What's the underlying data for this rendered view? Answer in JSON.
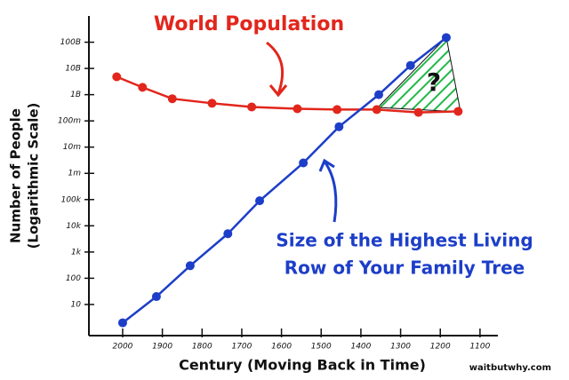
{
  "chart_data": {
    "type": "line",
    "title": "World Population",
    "annotations": [
      "Size of the Highest Living",
      "Row of Your Family Tree",
      "?"
    ],
    "source": "waitbutwhy.com",
    "xlabel": "Century (Moving Back in Time)",
    "ylabel": [
      "Number of People",
      "(Logarithmic Scale)"
    ],
    "xlim": [
      2085,
      1055
    ],
    "xticks": [
      2000,
      1900,
      1800,
      1700,
      1600,
      1500,
      1400,
      1300,
      1200,
      1100
    ],
    "ylim": [
      0.65,
      1000000000000
    ],
    "yscale": "log",
    "yticks": [
      {
        "value": 10,
        "label": "10"
      },
      {
        "value": 100,
        "label": "100"
      },
      {
        "value": 1000,
        "label": "1k"
      },
      {
        "value": 10000,
        "label": "10k"
      },
      {
        "value": 100000,
        "label": "100k"
      },
      {
        "value": 1000000,
        "label": "1m"
      },
      {
        "value": 10000000,
        "label": "10m"
      },
      {
        "value": 100000000,
        "label": "100m"
      },
      {
        "value": 1000000000,
        "label": "1B"
      },
      {
        "value": 10000000000,
        "label": "10B"
      },
      {
        "value": 100000000000,
        "label": "100B"
      }
    ],
    "series": [
      {
        "name": "World Population",
        "color": "#e2261c",
        "x": [
          2015,
          1950,
          1875,
          1775,
          1675,
          1560,
          1460,
          1360,
          1255,
          1155
        ],
        "values": [
          4800000000,
          1900000000,
          700000000,
          470000000,
          340000000,
          290000000,
          270000000,
          270000000,
          210000000,
          230000000
        ]
      },
      {
        "color": "#1d3ec8",
        "x": [
          2000,
          1915,
          1830,
          1735,
          1655,
          1545,
          1455,
          1355,
          1275,
          1185
        ],
        "values": [
          2,
          20,
          300,
          5000,
          90000,
          2500000,
          60000000,
          1000000000,
          13000000000,
          150000000000
        ]
      }
    ]
  }
}
